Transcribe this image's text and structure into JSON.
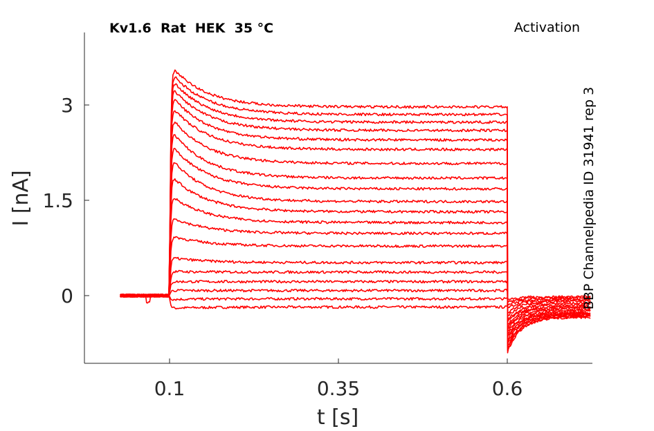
{
  "chart_data": {
    "type": "line",
    "title": "Kv1.6  Rat  HEK  35 °C",
    "annotation_right": "Activation",
    "source_label": "BBP Channelpedia ID 31941 rep 3",
    "xlabel": "t [s]",
    "ylabel": "I [nA]",
    "xlim": [
      0.0,
      0.75
    ],
    "ylim": [
      -1.07,
      4.07
    ],
    "xticks": [
      0.1,
      0.35,
      0.6
    ],
    "xtick_labels": [
      "0.1",
      "0.35",
      "0.6"
    ],
    "yticks": [
      0,
      1.5,
      3
    ],
    "ytick_labels": [
      "0",
      "1.5",
      "3"
    ],
    "grid": false,
    "line_color": "#ff0000",
    "pulse_start_s": 0.1,
    "pulse_end_s": 0.6,
    "trace_start_s": 0.027,
    "trace_end_s": 0.723,
    "series": [
      {
        "peak": -0.2,
        "steady": -0.18,
        "tail_start": -0.05,
        "tail_end": -0.02
      },
      {
        "peak": -0.06,
        "steady": -0.05,
        "tail_start": -0.1,
        "tail_end": -0.03
      },
      {
        "peak": 0.08,
        "steady": 0.08,
        "tail_start": -0.15,
        "tail_end": -0.05
      },
      {
        "peak": 0.22,
        "steady": 0.22,
        "tail_start": -0.2,
        "tail_end": -0.07
      },
      {
        "peak": 0.38,
        "steady": 0.37,
        "tail_start": -0.27,
        "tail_end": -0.09
      },
      {
        "peak": 0.6,
        "steady": 0.52,
        "tail_start": -0.32,
        "tail_end": -0.12
      },
      {
        "peak": 0.95,
        "steady": 0.78,
        "tail_start": -0.38,
        "tail_end": -0.14
      },
      {
        "peak": 1.25,
        "steady": 0.98,
        "tail_start": -0.42,
        "tail_end": -0.17
      },
      {
        "peak": 1.6,
        "steady": 1.15,
        "tail_start": -0.46,
        "tail_end": -0.19
      },
      {
        "peak": 1.92,
        "steady": 1.32,
        "tail_start": -0.5,
        "tail_end": -0.21
      },
      {
        "peak": 2.2,
        "steady": 1.48,
        "tail_start": -0.54,
        "tail_end": -0.23
      },
      {
        "peak": 2.42,
        "steady": 1.68,
        "tail_start": -0.58,
        "tail_end": -0.25
      },
      {
        "peak": 2.65,
        "steady": 1.85,
        "tail_start": -0.62,
        "tail_end": -0.27
      },
      {
        "peak": 2.85,
        "steady": 2.08,
        "tail_start": -0.66,
        "tail_end": -0.28
      },
      {
        "peak": 3.03,
        "steady": 2.3,
        "tail_start": -0.7,
        "tail_end": -0.29
      },
      {
        "peak": 3.2,
        "steady": 2.45,
        "tail_start": -0.74,
        "tail_end": -0.3
      },
      {
        "peak": 3.33,
        "steady": 2.6,
        "tail_start": -0.78,
        "tail_end": -0.31
      },
      {
        "peak": 3.45,
        "steady": 2.73,
        "tail_start": -0.82,
        "tail_end": -0.32
      },
      {
        "peak": 3.55,
        "steady": 2.85,
        "tail_start": -0.86,
        "tail_end": -0.33
      },
      {
        "peak": 3.65,
        "steady": 2.97,
        "tail_start": -0.9,
        "tail_end": -0.34
      }
    ]
  }
}
